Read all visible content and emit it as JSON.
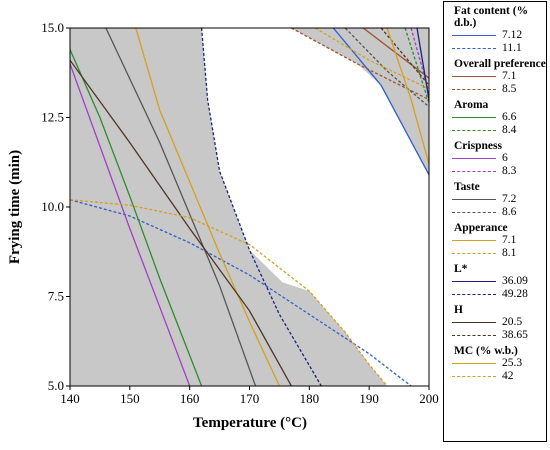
{
  "chart_data": {
    "type": "line",
    "title": "",
    "xlabel": "Temperature (°C)",
    "ylabel": "Frying time (min)",
    "xlim": [
      140,
      200
    ],
    "ylim": [
      5.0,
      15.0
    ],
    "xticks": [
      140,
      150,
      160,
      170,
      180,
      190,
      200
    ],
    "yticks": [
      5.0,
      7.5,
      10.0,
      12.5,
      15.0
    ],
    "ytick_labels": [
      "5.0",
      "7.5",
      "10.0",
      "12.5",
      "15.0"
    ],
    "shading": "grey fill outside the feasible (white) region",
    "legend_position": "right",
    "groups": [
      {
        "title": "Fat content (% d.b.)",
        "color": "#2e5fcc",
        "series": [
          {
            "name": "7.12",
            "style": "solid",
            "points": [
              [
                184,
                15.0
              ],
              [
                192,
                13.4
              ],
              [
                200,
                10.9
              ]
            ]
          },
          {
            "name": "11.1",
            "style": "dashed",
            "points": [
              [
                140,
                10.2
              ],
              [
                150,
                9.75
              ],
              [
                160,
                9.0
              ],
              [
                170,
                8.1
              ],
              [
                180,
                7.0
              ],
              [
                190,
                5.9
              ],
              [
                197,
                5.0
              ]
            ]
          }
        ]
      },
      {
        "title": "Overall preference",
        "color": "#a0522d",
        "series": [
          {
            "name": "7.1",
            "style": "solid",
            "points": [
              [
                189,
                15.0
              ],
              [
                200,
                13.6
              ]
            ]
          },
          {
            "name": "8.5",
            "style": "dashed",
            "points": [
              [
                177,
                15.0
              ],
              [
                188,
                14.0
              ],
              [
                200,
                13.0
              ]
            ]
          }
        ]
      },
      {
        "title": "Aroma",
        "color": "#2e8b2e",
        "series": [
          {
            "name": "6.6",
            "style": "solid",
            "points": [
              [
                140,
                14.4
              ],
              [
                145,
                12.5
              ],
              [
                150,
                10.3
              ],
              [
                155,
                8.0
              ],
              [
                162,
                5.0
              ]
            ]
          },
          {
            "name": "8.4",
            "style": "dashed",
            "points": [
              [
                196,
                15.0
              ],
              [
                200,
                12.9
              ]
            ]
          }
        ]
      },
      {
        "title": "Crispness",
        "color": "#a040c8",
        "series": [
          {
            "name": "6",
            "style": "solid",
            "points": [
              [
                140,
                14.0
              ],
              [
                145,
                11.7
              ],
              [
                150,
                9.4
              ],
              [
                155,
                7.2
              ],
              [
                160,
                5.0
              ]
            ]
          },
          {
            "name": "8.3",
            "style": "dashed",
            "points": [
              [
                197,
                15.0
              ],
              [
                200,
                13.2
              ]
            ]
          }
        ]
      },
      {
        "title": "Taste",
        "color": "#555555",
        "series": [
          {
            "name": "7.2",
            "style": "solid",
            "points": [
              [
                146,
                15.0
              ],
              [
                155,
                11.8
              ],
              [
                165,
                7.8
              ],
              [
                171,
                5.0
              ]
            ]
          },
          {
            "name": "8.6",
            "style": "dashed",
            "points": [
              [
                186,
                15.0
              ],
              [
                193,
                13.8
              ],
              [
                200,
                12.8
              ]
            ]
          }
        ]
      },
      {
        "title": "Apperance",
        "color": "#d4a020",
        "series": [
          {
            "name": "7.1",
            "style": "solid",
            "points": [
              [
                151,
                15.0
              ],
              [
                155,
                12.7
              ],
              [
                160,
                10.7
              ],
              [
                165,
                8.7
              ],
              [
                170,
                6.8
              ],
              [
                175,
                5.0
              ]
            ]
          },
          {
            "name": "8.1",
            "style": "dashed",
            "points": [
              [
                181,
                15.0
              ],
              [
                190,
                14.1
              ],
              [
                200,
                13.3
              ]
            ]
          }
        ]
      },
      {
        "title": "L*",
        "color": "#1a237e",
        "series": [
          {
            "name": "36.09",
            "style": "solid",
            "points": [
              [
                198,
                15.0
              ],
              [
                200,
                13.0
              ]
            ]
          },
          {
            "name": "49.28",
            "style": "dashed",
            "points": [
              [
                162,
                15.0
              ],
              [
                163,
                13.0
              ],
              [
                165,
                11.0
              ],
              [
                170,
                8.8
              ],
              [
                175,
                7.0
              ],
              [
                182,
                5.0
              ]
            ]
          }
        ]
      },
      {
        "title": "H",
        "color": "#4e3626",
        "series": [
          {
            "name": "20.5",
            "style": "solid",
            "points": [
              [
                140,
                14.1
              ],
              [
                150,
                11.8
              ],
              [
                160,
                9.4
              ],
              [
                170,
                7.1
              ],
              [
                177,
                5.0
              ]
            ]
          },
          {
            "name": "38.65",
            "style": "dashed",
            "points": [
              [
                192,
                15.0
              ],
              [
                200,
                13.4
              ]
            ]
          }
        ]
      },
      {
        "title": "MC (% w.b.)",
        "color": "#d4a020",
        "series": [
          {
            "name": "25.3",
            "style": "solid",
            "points": [
              [
                193,
                15.0
              ],
              [
                197,
                13.0
              ],
              [
                200,
                11.2
              ]
            ]
          },
          {
            "name": "42",
            "style": "dashed",
            "points": [
              [
                140,
                10.2
              ],
              [
                150,
                10.05
              ],
              [
                160,
                9.7
              ],
              [
                170,
                8.95
              ],
              [
                180,
                7.65
              ],
              [
                186,
                6.5
              ],
              [
                190,
                5.6
              ],
              [
                193,
                5.0
              ]
            ]
          }
        ]
      }
    ]
  }
}
